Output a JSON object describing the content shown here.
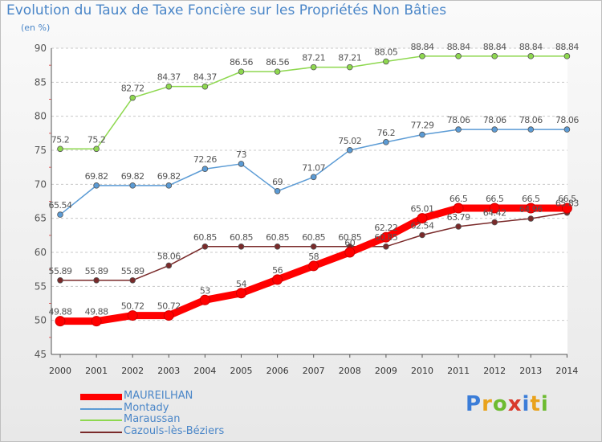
{
  "title": "Evolution du Taux de Taxe Foncière sur les Propriétés Non Bâties",
  "subtitle": "(en %)",
  "logo_text": "Proxiti",
  "chart_data": {
    "type": "line",
    "title": "Evolution du Taux de Taxe Foncière sur les Propriétés Non Bâties",
    "ylabel": "(en %)",
    "xlabel": "",
    "ylim": [
      45,
      90
    ],
    "yticks": [
      "45",
      "50",
      "55",
      "60",
      "65",
      "70",
      "75",
      "80",
      "85",
      "90"
    ],
    "grid": "horizontal dashed",
    "legend": "bottom-left",
    "categories": [
      "2000",
      "2001",
      "2002",
      "2003",
      "2004",
      "2005",
      "2006",
      "2007",
      "2008",
      "2009",
      "2010",
      "2011",
      "2012",
      "2013",
      "2014"
    ],
    "series": [
      {
        "name": "MAUREILHAN",
        "color": "#ff0000",
        "values": [
          49.88,
          49.88,
          50.72,
          50.72,
          53,
          54,
          56,
          58,
          60,
          62.22,
          65.01,
          66.5,
          66.5,
          66.5,
          66.5
        ],
        "labels": [
          "49.88",
          "49.88",
          "50.72",
          "50.72",
          "53",
          "54",
          "56",
          "58",
          "60",
          "62.22",
          "65.01",
          "66.5",
          "66.5",
          "66.5",
          "66.5"
        ]
      },
      {
        "name": "Montady",
        "color": "#5b9bd5",
        "values": [
          65.54,
          69.82,
          69.82,
          69.82,
          72.26,
          73,
          69,
          71.07,
          75.02,
          76.2,
          77.29,
          78.06,
          78.06,
          78.06,
          78.06
        ],
        "labels": [
          "65.54",
          "69.82",
          "69.82",
          "69.82",
          "72.26",
          "73",
          "69",
          "71.07",
          "75.02",
          "76.2",
          "77.29",
          "78.06",
          "78.06",
          "78.06",
          "78.06"
        ]
      },
      {
        "name": "Maraussan",
        "color": "#8ed84f",
        "values": [
          75.2,
          75.2,
          82.72,
          84.37,
          84.37,
          86.56,
          86.56,
          87.21,
          87.21,
          88.05,
          88.84,
          88.84,
          88.84,
          88.84,
          88.84
        ],
        "labels": [
          "75.2",
          "75.2",
          "82.72",
          "84.37",
          "84.37",
          "86.56",
          "86.56",
          "87.21",
          "87.21",
          "88.05",
          "88.84",
          "88.84",
          "88.84",
          "88.84",
          "88.84"
        ]
      },
      {
        "name": "Cazouls-lès-Béziers",
        "color": "#7a2a2a",
        "values": [
          55.89,
          55.89,
          55.89,
          58.06,
          60.85,
          60.85,
          60.85,
          60.85,
          60.85,
          60.85,
          62.54,
          63.79,
          64.42,
          64.96,
          65.83
        ],
        "labels": [
          "55.89",
          "55.89",
          "55.89",
          "58.06",
          "60.85",
          "60.85",
          "60.85",
          "60.85",
          "60.85",
          "60.85",
          "62.54",
          "63.79",
          "64.42",
          "64.96",
          "65.83"
        ]
      }
    ]
  }
}
